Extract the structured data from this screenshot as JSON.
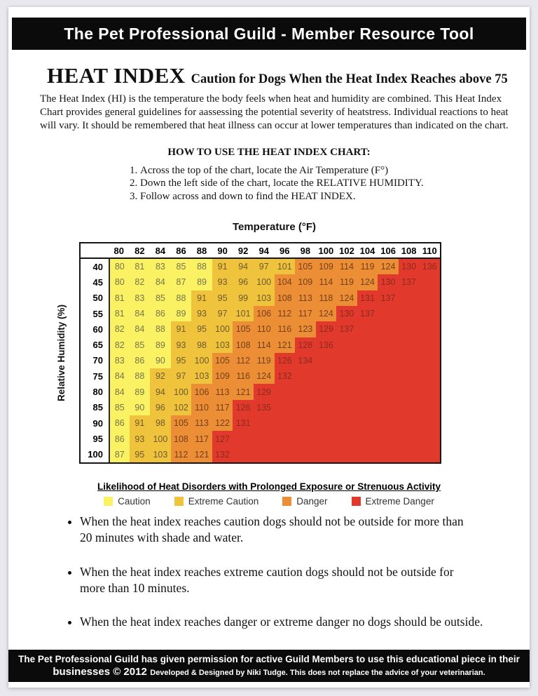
{
  "banner": {
    "title": "The Pet Professional Guild - Member Resource Tool"
  },
  "heading": {
    "main": "HEAT INDEX",
    "sub": "Caution for Dogs When the Heat Index Reaches above 75"
  },
  "intro_lines": [
    "The Heat Index (HI) is the temperature the body feels when heat and humidity are combined.  This Heat Index",
    "Chart provides general guidelines for aassessing the potential severity of heatstress.  Individual reactions to heat",
    "will vary.  It should be remembered that heat illness can occur at lower temperatures than indicated on the chart."
  ],
  "how_to": {
    "title": "HOW TO USE THE HEAT INDEX CHART:",
    "steps": [
      "Across the top of the chart, locate the Air Temperature  (F°)",
      "Down the left side of the chart, locate the RELATIVE HUMIDITY.",
      "Follow across and down to find the HEAT INDEX."
    ]
  },
  "chart_data": {
    "type": "heatmap",
    "xlabel": "Temperature (°F)",
    "ylabel": "Relative Humidity (%)",
    "temperatures": [
      80,
      82,
      84,
      86,
      88,
      90,
      92,
      94,
      96,
      98,
      100,
      102,
      104,
      106,
      108,
      110
    ],
    "rows": [
      {
        "humidity": 40,
        "values": [
          80,
          81,
          83,
          85,
          88,
          91,
          94,
          97,
          101,
          105,
          109,
          114,
          119,
          124,
          130,
          136
        ]
      },
      {
        "humidity": 45,
        "values": [
          80,
          82,
          84,
          87,
          89,
          93,
          96,
          100,
          104,
          109,
          114,
          119,
          124,
          130,
          137
        ]
      },
      {
        "humidity": 50,
        "values": [
          81,
          83,
          85,
          88,
          91,
          95,
          99,
          103,
          108,
          113,
          118,
          124,
          131,
          137
        ]
      },
      {
        "humidity": 55,
        "values": [
          81,
          84,
          86,
          89,
          93,
          97,
          101,
          106,
          112,
          117,
          124,
          130,
          137
        ]
      },
      {
        "humidity": 60,
        "values": [
          82,
          84,
          88,
          91,
          95,
          100,
          105,
          110,
          116,
          123,
          129,
          137
        ]
      },
      {
        "humidity": 65,
        "values": [
          82,
          85,
          89,
          93,
          98,
          103,
          108,
          114,
          121,
          128,
          136
        ]
      },
      {
        "humidity": 70,
        "values": [
          83,
          86,
          90,
          95,
          100,
          105,
          112,
          119,
          126,
          134
        ]
      },
      {
        "humidity": 75,
        "values": [
          84,
          88,
          92,
          97,
          103,
          109,
          116,
          124,
          132
        ]
      },
      {
        "humidity": 80,
        "values": [
          84,
          89,
          94,
          100,
          106,
          113,
          121,
          129
        ]
      },
      {
        "humidity": 85,
        "values": [
          85,
          90,
          96,
          102,
          110,
          117,
          126,
          135
        ]
      },
      {
        "humidity": 90,
        "values": [
          86,
          91,
          98,
          105,
          113,
          122,
          131
        ]
      },
      {
        "humidity": 95,
        "values": [
          86,
          93,
          100,
          108,
          117,
          127
        ]
      },
      {
        "humidity": 100,
        "values": [
          87,
          95,
          103,
          112,
          121,
          132
        ]
      }
    ],
    "bands": [
      {
        "label": "Caution",
        "max_hi": 90,
        "bg": "#faf163",
        "text": "#76754e"
      },
      {
        "label": "Extreme Caution",
        "max_hi": 103,
        "bg": "#efc33c",
        "text": "#6e5a2e"
      },
      {
        "label": "Danger",
        "max_hi": 124,
        "bg": "#ec8e35",
        "text": "#753f17"
      },
      {
        "label": "Extreme Danger",
        "max_hi": null,
        "bg": "#e1392b",
        "text": "#8f2a1e"
      }
    ]
  },
  "legend": {
    "title": "Likelihood of Heat Disorders with Prolonged Exposure or Strenuous Activity"
  },
  "bullets": [
    {
      "lines": [
        "When the heat index reaches caution dogs should not be outside for more than",
        "20 minutes with shade and water."
      ]
    },
    {
      "lines": [
        "When the heat index reaches extreme caution dogs should not be outside for",
        "more than 10 minutes."
      ]
    },
    {
      "lines": [
        "When the heat index reaches danger or extreme danger no dogs should be outside."
      ]
    }
  ],
  "footer": {
    "line1": "The Pet Professional Guild has given permission for active Guild Members to use this educational piece in their",
    "line2_bold": "businesses © 2012",
    "line2_small": "Developed & Designed by  Niki Tudge. This does not replace the advice of your veterinarian."
  }
}
